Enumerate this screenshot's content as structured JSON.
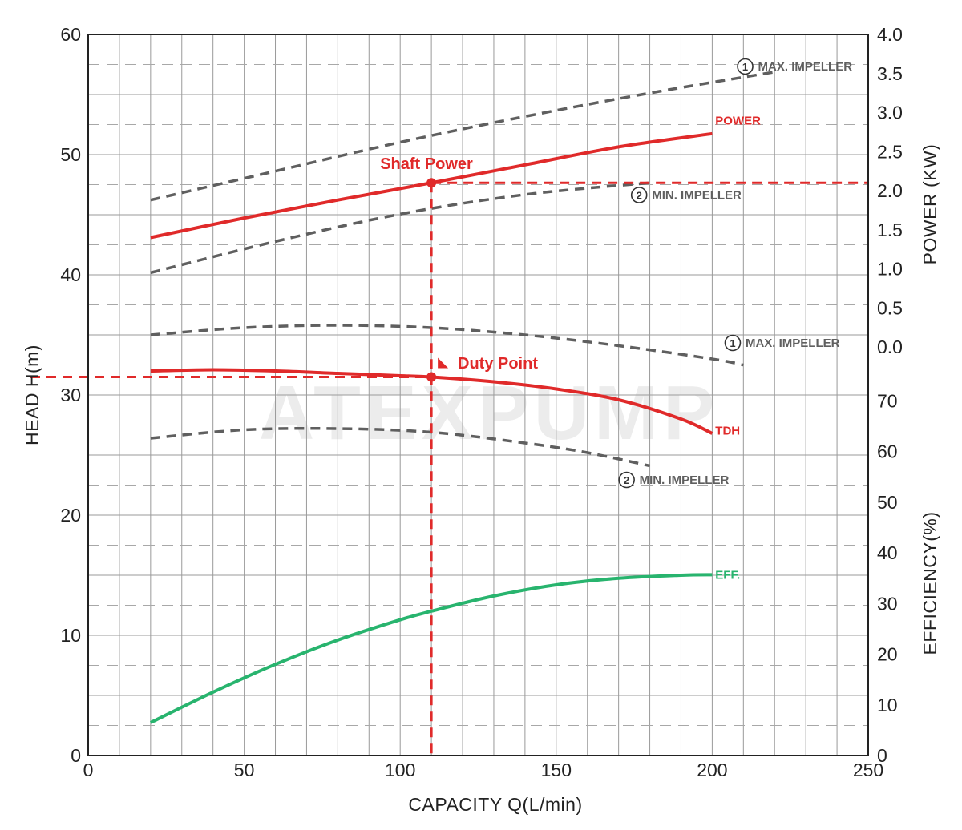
{
  "chart_data": {
    "type": "line",
    "watermark": "ATEXPUMP",
    "x_axis": {
      "label": "CAPACITY Q(L/min)",
      "range": [
        0,
        250
      ],
      "ticks": [
        0,
        50,
        100,
        150,
        200,
        250
      ],
      "gridlines": [
        0,
        10,
        20,
        30,
        40,
        50,
        60,
        70,
        80,
        90,
        100,
        110,
        120,
        130,
        140,
        150,
        160,
        170,
        180,
        190,
        200,
        210,
        220,
        230,
        240,
        250
      ]
    },
    "y_left": {
      "label": "HEAD H(m)",
      "range": [
        0,
        60
      ],
      "ticks": [
        "0",
        "10",
        "20",
        "30",
        "40",
        "50",
        "60"
      ],
      "tick_values": [
        0,
        10,
        20,
        30,
        40,
        50,
        60
      ],
      "gridlines": [
        0,
        5,
        10,
        15,
        20,
        25,
        30,
        35,
        40,
        45,
        50,
        55,
        60
      ]
    },
    "y_power": {
      "label": "POWER (KW)",
      "range": [
        0,
        4.0
      ],
      "ticks": [
        "0.0",
        "0.5",
        "1.0",
        "1.5",
        "2.0",
        "2.5",
        "3.0",
        "3.5",
        "4.0"
      ],
      "tick_values": [
        0,
        0.5,
        1.0,
        1.5,
        2.0,
        2.5,
        3.0,
        3.5,
        4.0
      ],
      "head_at_min": 34,
      "head_at_max": 60
    },
    "y_eff": {
      "label": "EFFICIENCY(%)",
      "range": [
        0,
        70
      ],
      "ticks": [
        "0",
        "10",
        "20",
        "30",
        "40",
        "50",
        "60",
        "70"
      ],
      "tick_values": [
        0,
        10,
        20,
        30,
        40,
        50,
        60,
        70
      ],
      "head_at_min": 0,
      "head_at_max": 29.5
    },
    "dashed_minor_grid_head": [
      2.5,
      7.5,
      12.5,
      17.5,
      22.5,
      27.5,
      32.5,
      37.5,
      42.5,
      47.5,
      52.5,
      57.5
    ],
    "series": [
      {
        "name": "POWER",
        "axis": "power",
        "color": "#e02a2a",
        "style": "solid",
        "x": [
          20,
          50,
          80,
          110,
          140,
          170,
          200
        ],
        "y": [
          1.4,
          1.65,
          1.88,
          2.1,
          2.33,
          2.56,
          2.73
        ]
      },
      {
        "name": "MAX. IMPELLER",
        "number": "1",
        "axis": "power",
        "color": "#5f5f5f",
        "style": "dashed",
        "x": [
          20,
          60,
          100,
          140,
          180,
          220
        ],
        "y": [
          1.88,
          2.25,
          2.62,
          2.95,
          3.25,
          3.52
        ]
      },
      {
        "name": "MIN. IMPELLER",
        "number": "2",
        "axis": "power",
        "color": "#5f5f5f",
        "style": "dashed",
        "x": [
          20,
          60,
          100,
          140,
          180
        ],
        "y": [
          0.95,
          1.35,
          1.7,
          1.95,
          2.1
        ]
      },
      {
        "name": "TDH",
        "axis": "head",
        "color": "#e02a2a",
        "style": "solid",
        "x": [
          20,
          40,
          60,
          80,
          100,
          110,
          130,
          150,
          170,
          190,
          200
        ],
        "y": [
          32.0,
          32.1,
          32.0,
          31.8,
          31.6,
          31.5,
          31.1,
          30.5,
          29.6,
          28.0,
          26.8
        ]
      },
      {
        "name": "MAX. IMPELLER",
        "number": "1",
        "axis": "head",
        "color": "#5f5f5f",
        "style": "dashed",
        "x": [
          20,
          50,
          80,
          110,
          140,
          170,
          200,
          210
        ],
        "y": [
          35.0,
          35.6,
          35.8,
          35.6,
          35.0,
          34.1,
          33.0,
          32.5
        ]
      },
      {
        "name": "MIN. IMPELLER",
        "number": "2",
        "axis": "head",
        "color": "#5f5f5f",
        "style": "dashed",
        "x": [
          20,
          50,
          80,
          110,
          140,
          160,
          180
        ],
        "y": [
          26.4,
          27.1,
          27.2,
          26.9,
          26.0,
          25.2,
          24.1
        ]
      },
      {
        "name": "EFF.",
        "axis": "eff",
        "color": "#28b46e",
        "style": "solid",
        "x": [
          20,
          40,
          60,
          80,
          100,
          110,
          130,
          150,
          170,
          190,
          200
        ],
        "y": [
          6.5,
          12.5,
          18.0,
          22.8,
          26.8,
          28.5,
          31.5,
          33.7,
          35.0,
          35.6,
          35.7
        ]
      }
    ],
    "labels": [
      {
        "id": "power",
        "text": "POWER",
        "color": "#e02a2a",
        "x": 201,
        "y": 52.5,
        "anchor": "start"
      },
      {
        "id": "max-power",
        "text": "MAX. IMPELLER",
        "number": "1",
        "color": "#5f5f5f",
        "x": 208,
        "y": 57.0,
        "anchor": "start"
      },
      {
        "id": "min-power",
        "text": "MIN. IMPELLER",
        "number": "2",
        "color": "#5f5f5f",
        "x": 174,
        "y": 46.3,
        "anchor": "start"
      },
      {
        "id": "max-head",
        "text": "MAX. IMPELLER",
        "number": "1",
        "color": "#5f5f5f",
        "x": 204,
        "y": 34.0,
        "anchor": "start"
      },
      {
        "id": "tdh",
        "text": "TDH",
        "color": "#e02a2a",
        "x": 201,
        "y": 26.7,
        "anchor": "start"
      },
      {
        "id": "min-head",
        "text": "MIN. IMPELLER",
        "number": "2",
        "color": "#5f5f5f",
        "x": 170,
        "y": 22.6,
        "anchor": "start"
      },
      {
        "id": "eff",
        "text": "EFF.",
        "color": "#28b46e",
        "x": 201,
        "y": 14.7,
        "anchor": "start"
      }
    ],
    "duty_point": {
      "x": 110,
      "head": 31.5,
      "label": "Duty Point",
      "color": "#e02a2a"
    },
    "shaft_power": {
      "x": 110,
      "power": 2.1,
      "label": "Shaft Power",
      "color": "#e02a2a"
    }
  }
}
